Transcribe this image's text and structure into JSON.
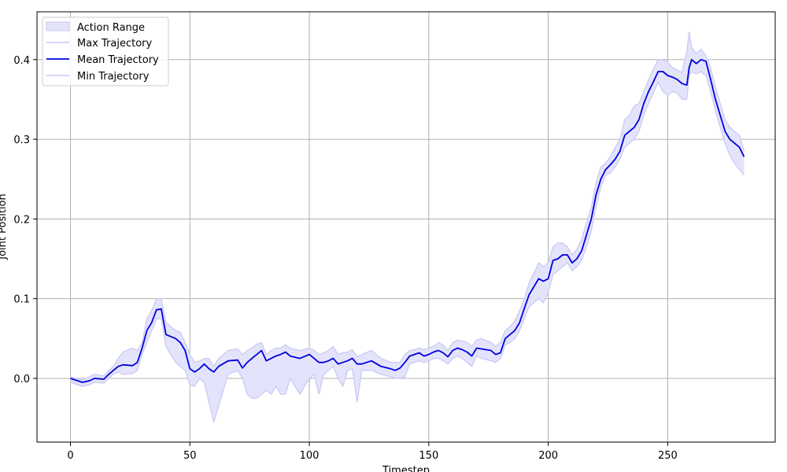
{
  "chart_data": {
    "type": "line",
    "title": "",
    "xlabel": "Timestep",
    "ylabel": "Joint Position",
    "xlim": [
      -14,
      295
    ],
    "ylim": [
      -0.08,
      0.46
    ],
    "grid": true,
    "legend_position": "top-left",
    "x_ticks": [
      0,
      50,
      100,
      150,
      200,
      250
    ],
    "y_ticks": [
      0.0,
      0.1,
      0.2,
      0.3,
      0.4
    ],
    "x_tick_labels": [
      "0",
      "50",
      "100",
      "150",
      "200",
      "250"
    ],
    "y_tick_labels": [
      "0.0",
      "0.1",
      "0.2",
      "0.3",
      "0.4"
    ],
    "legend": [
      "Action Range",
      "Max Trajectory",
      "Mean Trajectory",
      "Min Trajectory"
    ],
    "colors": {
      "mean": "#0000dd",
      "band_fill": "#e3e3fb",
      "band_line": "#c8c8f5",
      "grid": "#b0b0b0"
    },
    "series": [
      {
        "name": "Mean Trajectory",
        "x": [
          0,
          5,
          8,
          10,
          14,
          16,
          18,
          20,
          22,
          26,
          28,
          30,
          32,
          34,
          36,
          38,
          40,
          44,
          46,
          48,
          50,
          52,
          54,
          56,
          58,
          60,
          62,
          66,
          70,
          72,
          74,
          76,
          78,
          80,
          82,
          84,
          86,
          88,
          90,
          92,
          96,
          100,
          102,
          104,
          106,
          108,
          110,
          112,
          114,
          116,
          118,
          120,
          122,
          126,
          130,
          134,
          136,
          138,
          140,
          142,
          144,
          146,
          148,
          150,
          152,
          154,
          156,
          158,
          160,
          162,
          164,
          166,
          168,
          170,
          172,
          176,
          178,
          180,
          182,
          184,
          186,
          188,
          190,
          192,
          196,
          198,
          200,
          202,
          204,
          206,
          208,
          210,
          212,
          214,
          216,
          218,
          220,
          222,
          224,
          226,
          228,
          230,
          232,
          234,
          236,
          238,
          240,
          242,
          244,
          246,
          248,
          250,
          252,
          254,
          256,
          258,
          259,
          260,
          262,
          264,
          266,
          268,
          270,
          272,
          274,
          276,
          278,
          280,
          282
        ],
        "y": [
          0.0,
          -0.005,
          -0.003,
          0.0,
          -0.001,
          0.005,
          0.01,
          0.015,
          0.017,
          0.016,
          0.02,
          0.038,
          0.06,
          0.07,
          0.086,
          0.087,
          0.055,
          0.05,
          0.045,
          0.035,
          0.012,
          0.008,
          0.012,
          0.018,
          0.012,
          0.008,
          0.015,
          0.022,
          0.023,
          0.013,
          0.02,
          0.025,
          0.03,
          0.035,
          0.022,
          0.025,
          0.028,
          0.03,
          0.033,
          0.028,
          0.025,
          0.03,
          0.025,
          0.02,
          0.02,
          0.022,
          0.025,
          0.018,
          0.02,
          0.022,
          0.025,
          0.018,
          0.018,
          0.022,
          0.015,
          0.012,
          0.01,
          0.013,
          0.02,
          0.028,
          0.03,
          0.032,
          0.028,
          0.03,
          0.033,
          0.035,
          0.032,
          0.027,
          0.035,
          0.038,
          0.036,
          0.033,
          0.028,
          0.038,
          0.037,
          0.035,
          0.03,
          0.032,
          0.05,
          0.055,
          0.06,
          0.07,
          0.088,
          0.105,
          0.125,
          0.122,
          0.125,
          0.148,
          0.15,
          0.155,
          0.155,
          0.145,
          0.15,
          0.16,
          0.18,
          0.2,
          0.23,
          0.25,
          0.262,
          0.268,
          0.275,
          0.285,
          0.305,
          0.31,
          0.315,
          0.325,
          0.345,
          0.36,
          0.372,
          0.385,
          0.385,
          0.38,
          0.378,
          0.375,
          0.37,
          0.368,
          0.39,
          0.4,
          0.395,
          0.4,
          0.398,
          0.375,
          0.35,
          0.33,
          0.31,
          0.3,
          0.295,
          0.29,
          0.278
        ]
      },
      {
        "name": "Max Trajectory",
        "x": [
          0,
          5,
          8,
          10,
          14,
          16,
          18,
          20,
          22,
          26,
          28,
          30,
          32,
          34,
          36,
          38,
          40,
          44,
          46,
          48,
          50,
          52,
          54,
          56,
          58,
          60,
          62,
          66,
          70,
          72,
          74,
          76,
          78,
          80,
          82,
          84,
          86,
          88,
          90,
          92,
          96,
          100,
          102,
          104,
          106,
          108,
          110,
          112,
          114,
          116,
          118,
          120,
          122,
          126,
          130,
          134,
          136,
          138,
          140,
          142,
          144,
          146,
          148,
          150,
          152,
          154,
          156,
          158,
          160,
          162,
          164,
          166,
          168,
          170,
          172,
          176,
          178,
          180,
          182,
          184,
          186,
          188,
          190,
          192,
          196,
          198,
          200,
          202,
          204,
          206,
          208,
          210,
          212,
          214,
          216,
          218,
          220,
          222,
          224,
          226,
          228,
          230,
          232,
          234,
          236,
          238,
          240,
          242,
          244,
          246,
          248,
          250,
          252,
          254,
          256,
          258,
          259,
          260,
          262,
          264,
          266,
          268,
          270,
          272,
          274,
          276,
          278,
          280,
          282
        ],
        "y": [
          0.002,
          -0.002,
          0.002,
          0.005,
          0.003,
          0.01,
          0.015,
          0.025,
          0.033,
          0.038,
          0.035,
          0.045,
          0.075,
          0.085,
          0.1,
          0.1,
          0.07,
          0.06,
          0.058,
          0.045,
          0.03,
          0.02,
          0.022,
          0.025,
          0.025,
          0.015,
          0.025,
          0.035,
          0.037,
          0.03,
          0.035,
          0.038,
          0.043,
          0.045,
          0.03,
          0.035,
          0.038,
          0.038,
          0.042,
          0.038,
          0.035,
          0.038,
          0.035,
          0.03,
          0.032,
          0.035,
          0.04,
          0.03,
          0.032,
          0.033,
          0.036,
          0.027,
          0.03,
          0.035,
          0.025,
          0.02,
          0.02,
          0.02,
          0.03,
          0.035,
          0.036,
          0.038,
          0.036,
          0.038,
          0.04,
          0.045,
          0.042,
          0.035,
          0.045,
          0.048,
          0.047,
          0.045,
          0.04,
          0.048,
          0.05,
          0.045,
          0.04,
          0.045,
          0.06,
          0.065,
          0.072,
          0.085,
          0.1,
          0.12,
          0.145,
          0.14,
          0.145,
          0.165,
          0.17,
          0.17,
          0.165,
          0.155,
          0.162,
          0.175,
          0.195,
          0.215,
          0.245,
          0.265,
          0.27,
          0.278,
          0.29,
          0.3,
          0.325,
          0.33,
          0.342,
          0.345,
          0.36,
          0.375,
          0.388,
          0.4,
          0.4,
          0.397,
          0.39,
          0.387,
          0.384,
          0.41,
          0.435,
          0.415,
          0.408,
          0.413,
          0.405,
          0.39,
          0.365,
          0.345,
          0.325,
          0.315,
          0.31,
          0.305,
          0.285
        ]
      },
      {
        "name": "Min Trajectory",
        "x": [
          0,
          5,
          8,
          10,
          14,
          16,
          18,
          20,
          22,
          26,
          28,
          30,
          32,
          34,
          36,
          38,
          40,
          44,
          46,
          48,
          50,
          52,
          54,
          56,
          58,
          60,
          62,
          66,
          70,
          72,
          74,
          76,
          78,
          80,
          82,
          84,
          86,
          88,
          90,
          92,
          96,
          100,
          102,
          104,
          106,
          108,
          110,
          112,
          114,
          116,
          118,
          120,
          122,
          126,
          130,
          134,
          136,
          138,
          140,
          142,
          144,
          146,
          148,
          150,
          152,
          154,
          156,
          158,
          160,
          162,
          164,
          166,
          168,
          170,
          172,
          176,
          178,
          180,
          182,
          184,
          186,
          188,
          190,
          192,
          196,
          198,
          200,
          202,
          204,
          206,
          208,
          210,
          212,
          214,
          216,
          218,
          220,
          222,
          224,
          226,
          228,
          230,
          232,
          234,
          236,
          238,
          240,
          242,
          244,
          246,
          248,
          250,
          252,
          254,
          256,
          258,
          259,
          260,
          262,
          264,
          266,
          268,
          270,
          272,
          274,
          276,
          278,
          280,
          282
        ],
        "y": [
          -0.005,
          -0.01,
          -0.008,
          -0.005,
          -0.006,
          0.0,
          0.005,
          0.008,
          0.005,
          0.006,
          0.01,
          0.03,
          0.045,
          0.06,
          0.075,
          0.075,
          0.04,
          0.02,
          0.015,
          0.01,
          -0.008,
          -0.01,
          0.0,
          -0.005,
          -0.03,
          -0.055,
          -0.035,
          0.005,
          0.01,
          0.0,
          -0.02,
          -0.025,
          -0.025,
          -0.02,
          -0.015,
          -0.02,
          -0.01,
          -0.02,
          -0.02,
          0.0,
          -0.02,
          0.0,
          0.005,
          -0.02,
          0.005,
          0.01,
          0.015,
          0.0,
          -0.01,
          0.01,
          0.012,
          -0.03,
          0.01,
          0.01,
          0.005,
          0.002,
          0.0,
          0.0,
          0.002,
          0.018,
          0.02,
          0.022,
          0.02,
          0.022,
          0.025,
          0.025,
          0.022,
          0.018,
          0.025,
          0.028,
          0.025,
          0.02,
          0.015,
          0.028,
          0.025,
          0.022,
          0.02,
          0.025,
          0.042,
          0.045,
          0.05,
          0.06,
          0.075,
          0.09,
          0.1,
          0.095,
          0.108,
          0.13,
          0.135,
          0.14,
          0.145,
          0.135,
          0.14,
          0.148,
          0.165,
          0.185,
          0.215,
          0.24,
          0.255,
          0.258,
          0.265,
          0.275,
          0.29,
          0.295,
          0.3,
          0.31,
          0.33,
          0.345,
          0.358,
          0.372,
          0.36,
          0.355,
          0.36,
          0.358,
          0.35,
          0.35,
          0.38,
          0.385,
          0.382,
          0.385,
          0.38,
          0.36,
          0.335,
          0.315,
          0.295,
          0.28,
          0.27,
          0.262,
          0.255
        ]
      }
    ]
  }
}
